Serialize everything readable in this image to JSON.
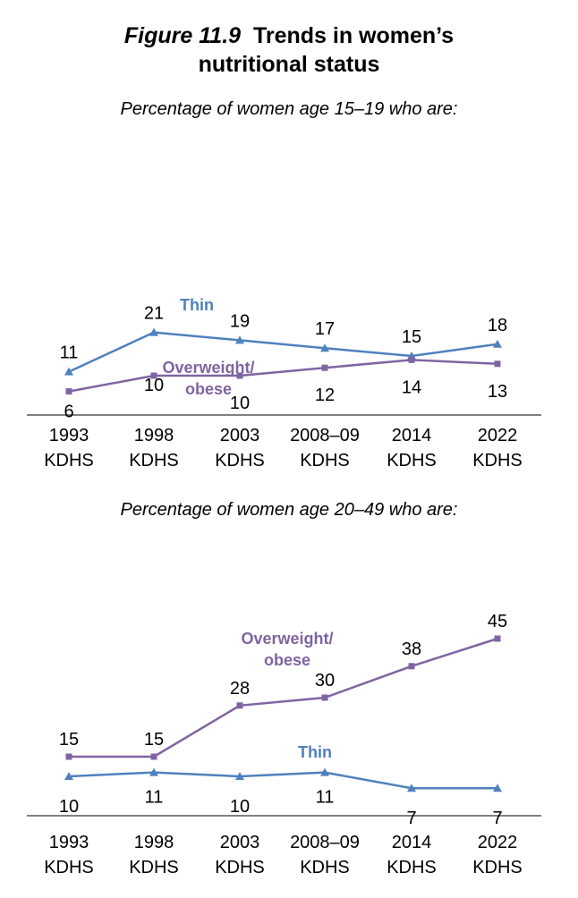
{
  "figure": {
    "number": "Figure 11.9",
    "title_line1": "Trends in women’s",
    "title_line2": "nutritional status"
  },
  "colors": {
    "thin": "#4F81BD",
    "overweight": "#8064A2",
    "axis": "#000000"
  },
  "chart_data": [
    {
      "type": "line",
      "subtitle": "Percentage of women age 15–19 who are:",
      "categories": [
        [
          "1993",
          "KDHS"
        ],
        [
          "1998",
          "KDHS"
        ],
        [
          "2003",
          "KDHS"
        ],
        [
          "2008–09",
          "KDHS"
        ],
        [
          "2014",
          "KDHS"
        ],
        [
          "2022",
          "KDHS"
        ]
      ],
      "ylim": [
        0,
        50
      ],
      "series": [
        {
          "name": "Thin",
          "name_lines": [
            "Thin"
          ],
          "values": [
            11,
            21,
            19,
            17,
            15,
            18
          ],
          "marker": "triangle",
          "color": "#4F81BD"
        },
        {
          "name": "Overweight/ obese",
          "name_lines": [
            "Overweight/",
            "obese"
          ],
          "values": [
            6,
            10,
            10,
            12,
            14,
            13
          ],
          "marker": "square",
          "color": "#8064A2"
        }
      ]
    },
    {
      "type": "line",
      "subtitle": "Percentage of women age 20–49 who are:",
      "categories": [
        [
          "1993",
          "KDHS"
        ],
        [
          "1998",
          "KDHS"
        ],
        [
          "2003",
          "KDHS"
        ],
        [
          "2008–09",
          "KDHS"
        ],
        [
          "2014",
          "KDHS"
        ],
        [
          "2022",
          "KDHS"
        ]
      ],
      "ylim": [
        0,
        50
      ],
      "series": [
        {
          "name": "Overweight/ obese",
          "name_lines": [
            "Overweight/",
            "obese"
          ],
          "values": [
            15,
            15,
            28,
            30,
            38,
            45
          ],
          "marker": "square",
          "color": "#8064A2"
        },
        {
          "name": "Thin",
          "name_lines": [
            "Thin"
          ],
          "values": [
            10,
            11,
            10,
            11,
            7,
            7
          ],
          "marker": "triangle",
          "color": "#4F81BD"
        }
      ]
    }
  ]
}
